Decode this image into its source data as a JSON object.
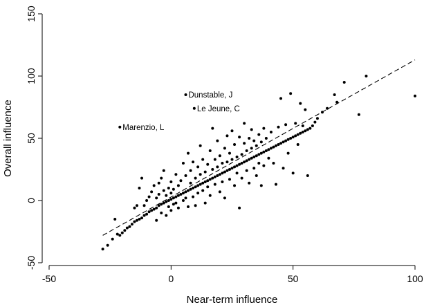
{
  "chart_data": {
    "type": "scatter",
    "xlabel": "Near-term influence",
    "ylabel": "Overall influence",
    "xlim": [
      -50,
      100
    ],
    "ylim": [
      -50,
      150
    ],
    "xticks": [
      -50,
      0,
      50,
      100
    ],
    "yticks": [
      -50,
      0,
      50,
      100,
      150
    ],
    "grid": false,
    "legend": "none",
    "fit_line": {
      "style": "dashed",
      "from": [
        -28,
        -28
      ],
      "to": [
        100,
        113
      ]
    },
    "marker_color": "#000000",
    "annotations": [
      {
        "label": "Dunstable, J",
        "x": 6,
        "y": 85
      },
      {
        "label": "Le Jeune, C",
        "x": 9.5,
        "y": 74
      },
      {
        "label": "Marenzio, L",
        "x": -21,
        "y": 59
      }
    ],
    "series": [
      {
        "points": [
          [
            -28,
            -39
          ],
          [
            -26,
            -36
          ],
          [
            -24,
            -31
          ],
          [
            -23,
            -15
          ],
          [
            -22,
            -27
          ],
          [
            -21,
            -28
          ],
          [
            -20,
            -26
          ],
          [
            -19,
            -24
          ],
          [
            -18,
            -22
          ],
          [
            -17,
            -21
          ],
          [
            -16,
            -19
          ],
          [
            -15,
            -17
          ],
          [
            -15,
            -6
          ],
          [
            -14,
            -16
          ],
          [
            -14,
            -4
          ],
          [
            -13,
            -15
          ],
          [
            -13,
            10
          ],
          [
            -12,
            -14
          ],
          [
            -12,
            18
          ],
          [
            -11,
            -12
          ],
          [
            -11,
            -4
          ],
          [
            -10,
            -11
          ],
          [
            -10,
            0
          ],
          [
            -9,
            -9
          ],
          [
            -9,
            3
          ],
          [
            -8,
            -8
          ],
          [
            -8,
            7
          ],
          [
            -7,
            -7
          ],
          [
            -7,
            12
          ],
          [
            -6,
            -6
          ],
          [
            -6,
            2
          ],
          [
            -6,
            -16
          ],
          [
            -5,
            -4
          ],
          [
            -5,
            14
          ],
          [
            -5,
            5
          ],
          [
            -4,
            -3
          ],
          [
            -4,
            18
          ],
          [
            -4,
            -10
          ],
          [
            -3,
            -2
          ],
          [
            -3,
            8
          ],
          [
            -3,
            24
          ],
          [
            -2,
            -1
          ],
          [
            -2,
            4
          ],
          [
            -2,
            -12
          ],
          [
            -1,
            0
          ],
          [
            -1,
            10
          ],
          [
            -1,
            -5
          ],
          [
            0,
            1
          ],
          [
            0,
            6
          ],
          [
            0,
            15
          ],
          [
            0,
            -8
          ],
          [
            1,
            2
          ],
          [
            1,
            -3
          ],
          [
            1,
            9
          ],
          [
            2,
            3
          ],
          [
            2,
            21
          ],
          [
            2,
            -2
          ],
          [
            3,
            4
          ],
          [
            3,
            12
          ],
          [
            3,
            -6
          ],
          [
            4,
            5
          ],
          [
            4,
            16
          ],
          [
            5,
            6
          ],
          [
            5,
            0
          ],
          [
            5,
            30
          ],
          [
            6,
            7
          ],
          [
            6,
            20
          ],
          [
            6,
            2
          ],
          [
            7,
            8
          ],
          [
            7,
            -5
          ],
          [
            7,
            38
          ],
          [
            8,
            9
          ],
          [
            8,
            24
          ],
          [
            8,
            14
          ],
          [
            9,
            10
          ],
          [
            9,
            3
          ],
          [
            9,
            31
          ],
          [
            10,
            11
          ],
          [
            10,
            18
          ],
          [
            10,
            -4
          ],
          [
            11,
            12
          ],
          [
            11,
            27
          ],
          [
            11,
            6
          ],
          [
            12,
            13
          ],
          [
            12,
            21
          ],
          [
            12,
            44
          ],
          [
            13,
            14
          ],
          [
            13,
            8
          ],
          [
            13,
            33
          ],
          [
            14,
            15
          ],
          [
            14,
            23
          ],
          [
            14,
            -2
          ],
          [
            15,
            16
          ],
          [
            15,
            29
          ],
          [
            15,
            11
          ],
          [
            16,
            17
          ],
          [
            16,
            40
          ],
          [
            16,
            4
          ],
          [
            17,
            18
          ],
          [
            17,
            25
          ],
          [
            17,
            58
          ],
          [
            18,
            19
          ],
          [
            18,
            13
          ],
          [
            18,
            33
          ],
          [
            19,
            20
          ],
          [
            19,
            27
          ],
          [
            19,
            48
          ],
          [
            20,
            21
          ],
          [
            20,
            7
          ],
          [
            20,
            36
          ],
          [
            21,
            22
          ],
          [
            21,
            30
          ],
          [
            21,
            15
          ],
          [
            22,
            23
          ],
          [
            22,
            42
          ],
          [
            22,
            2
          ],
          [
            23,
            24
          ],
          [
            23,
            31
          ],
          [
            23,
            52
          ],
          [
            24,
            25
          ],
          [
            24,
            17
          ],
          [
            24,
            38
          ],
          [
            25,
            26
          ],
          [
            25,
            33
          ],
          [
            25,
            56
          ],
          [
            26,
            27
          ],
          [
            26,
            12
          ],
          [
            26,
            45
          ],
          [
            27,
            28
          ],
          [
            27,
            35
          ],
          [
            27,
            22
          ],
          [
            28,
            29
          ],
          [
            28,
            51
          ],
          [
            28,
            -6
          ],
          [
            29,
            30
          ],
          [
            29,
            37
          ],
          [
            29,
            18
          ],
          [
            30,
            31
          ],
          [
            30,
            46
          ],
          [
            30,
            62
          ],
          [
            31,
            32
          ],
          [
            31,
            24
          ],
          [
            31,
            40
          ],
          [
            32,
            33
          ],
          [
            32,
            50
          ],
          [
            32,
            14
          ],
          [
            33,
            34
          ],
          [
            33,
            42
          ],
          [
            33,
            57
          ],
          [
            34,
            35
          ],
          [
            34,
            26
          ],
          [
            34,
            48
          ],
          [
            35,
            36
          ],
          [
            35,
            44
          ],
          [
            35,
            20
          ],
          [
            36,
            37
          ],
          [
            36,
            53
          ],
          [
            36,
            30
          ],
          [
            37,
            38
          ],
          [
            37,
            12
          ],
          [
            37,
            47
          ],
          [
            38,
            39
          ],
          [
            38,
            58
          ],
          [
            38,
            28
          ],
          [
            39,
            40
          ],
          [
            39,
            50
          ],
          [
            40,
            41
          ],
          [
            40,
            34
          ],
          [
            41,
            42
          ],
          [
            41,
            55
          ],
          [
            42,
            43
          ],
          [
            42,
            30
          ],
          [
            43,
            44
          ],
          [
            43,
            13
          ],
          [
            44,
            45
          ],
          [
            44,
            59
          ],
          [
            45,
            46
          ],
          [
            45,
            82
          ],
          [
            46,
            47
          ],
          [
            46,
            26
          ],
          [
            47,
            48
          ],
          [
            47,
            61
          ],
          [
            48,
            49
          ],
          [
            48,
            38
          ],
          [
            49,
            50
          ],
          [
            49,
            86
          ],
          [
            50,
            51
          ],
          [
            50,
            22
          ],
          [
            51,
            52
          ],
          [
            51,
            62
          ],
          [
            52,
            53
          ],
          [
            52,
            45
          ],
          [
            53,
            54
          ],
          [
            53,
            78
          ],
          [
            54,
            55
          ],
          [
            54,
            60
          ],
          [
            55,
            56
          ],
          [
            55,
            73
          ],
          [
            56,
            57
          ],
          [
            56,
            20
          ],
          [
            57,
            58
          ],
          [
            58,
            60
          ],
          [
            59,
            63
          ],
          [
            60,
            66
          ],
          [
            62,
            71
          ],
          [
            64,
            74
          ],
          [
            67,
            85
          ],
          [
            68,
            79
          ],
          [
            71,
            95
          ],
          [
            77,
            69
          ],
          [
            80,
            100
          ],
          [
            100,
            84
          ]
        ]
      }
    ]
  }
}
